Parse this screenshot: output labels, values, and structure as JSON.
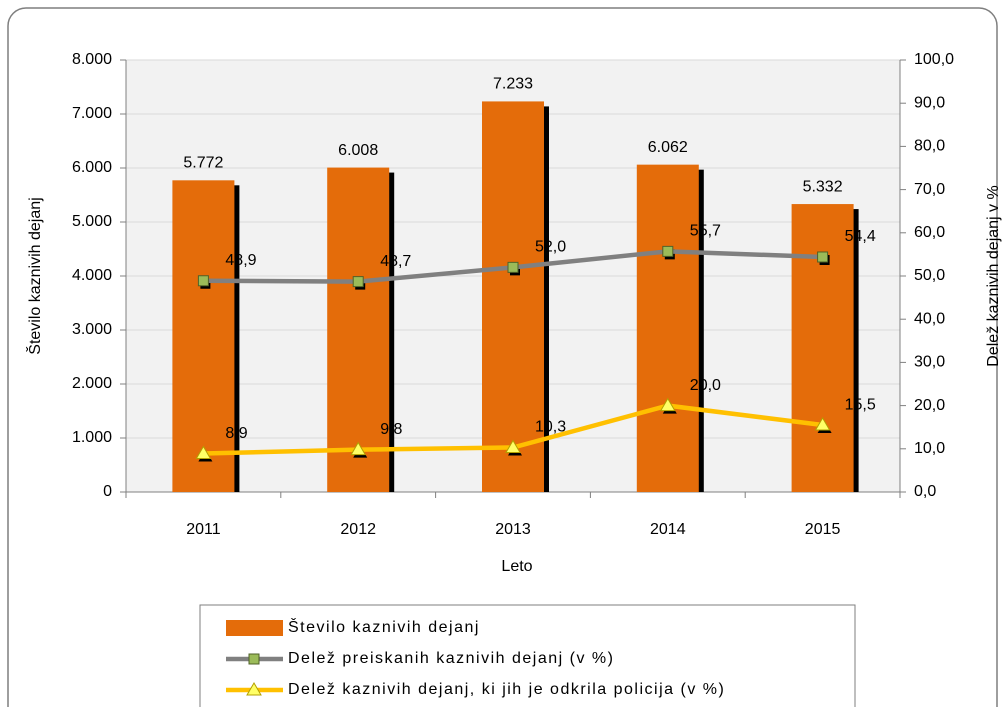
{
  "chart_data": {
    "type": "bar",
    "categories": [
      "2011",
      "2012",
      "2013",
      "2014",
      "2015"
    ],
    "x_label": "Leto",
    "y_label": "Število kaznivih dejanj",
    "y2_label": "Delež kaznivih dejanj v %",
    "series": [
      {
        "name": "Število kaznivih dejanj",
        "type": "bar",
        "color": "#E46C0A",
        "values": [
          5772,
          6008,
          7233,
          6062,
          5332
        ],
        "value_labels": [
          "5.772",
          "6.008",
          "7.233",
          "6.062",
          "5.332"
        ]
      },
      {
        "name": "Delež preiskanih kaznivih dejanj (v %)",
        "type": "line",
        "axis": "y2",
        "color": "#808080",
        "marker": "square",
        "marker_color": "#9BBB59",
        "values": [
          48.9,
          48.7,
          52.0,
          55.7,
          54.4
        ],
        "value_labels": [
          "48,9",
          "48,7",
          "52,0",
          "55,7",
          "54,4"
        ]
      },
      {
        "name": "Delež kaznivih dejanj, ki jih je odkrila policija (v %)",
        "type": "line",
        "axis": "y2",
        "color": "#FFC000",
        "marker": "triangle",
        "marker_color": "#FFFF66",
        "values": [
          8.9,
          9.8,
          10.3,
          20.0,
          15.5
        ],
        "value_labels": [
          "8,9",
          "9,8",
          "10,3",
          "20,0",
          "15,5"
        ]
      }
    ],
    "ylim": [
      0,
      8000
    ],
    "yticks": [
      0,
      {
        "value": 1000,
        "label": "1.000"
      },
      {
        "value": 2000,
        "label": "2.000"
      },
      {
        "value": 3000,
        "label": "3.000"
      },
      {
        "value": 4000,
        "label": "4.000"
      },
      {
        "value": 5000,
        "label": "5.000"
      },
      {
        "value": 6000,
        "label": "6.000"
      },
      {
        "value": 7000,
        "label": "7.000"
      },
      {
        "value": 8000,
        "label": "8.000"
      }
    ],
    "y2lim": [
      0,
      100
    ],
    "y2ticks": [
      {
        "value": 0,
        "label": "0,0"
      },
      {
        "value": 10,
        "label": "10,0"
      },
      {
        "value": 20,
        "label": "20,0"
      },
      {
        "value": 30,
        "label": "30,0"
      },
      {
        "value": 40,
        "label": "40,0"
      },
      {
        "value": 50,
        "label": "50,0"
      },
      {
        "value": 60,
        "label": "60,0"
      },
      {
        "value": 70,
        "label": "70,0"
      },
      {
        "value": 80,
        "label": "80,0"
      },
      {
        "value": 90,
        "label": "90,0"
      },
      {
        "value": 100,
        "label": "100,0"
      }
    ],
    "grid": true
  }
}
